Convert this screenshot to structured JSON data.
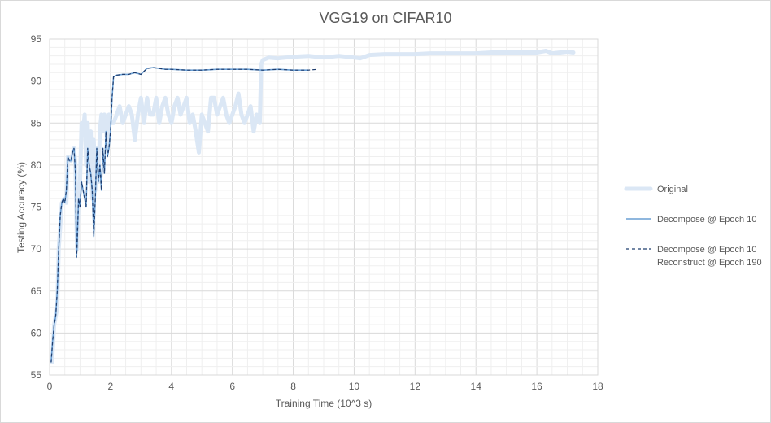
{
  "chart_data": {
    "type": "line",
    "title": "VGG19 on CIFAR10",
    "xlabel": "Training Time (10^3 s)",
    "ylabel": "Testing Accuracy (%)",
    "xlim": [
      0,
      18
    ],
    "ylim": [
      55,
      95
    ],
    "xticks": [
      "0",
      "2",
      "4",
      "6",
      "8",
      "10",
      "12",
      "14",
      "16",
      "18"
    ],
    "yticks": [
      "55",
      "60",
      "65",
      "70",
      "75",
      "80",
      "85",
      "90",
      "95"
    ],
    "grid": true,
    "legend_position": "right",
    "series": [
      {
        "name": "Original",
        "color": "#dbe7f5",
        "style": "thick",
        "x": [
          0.08,
          0.15,
          0.25,
          0.3,
          0.4,
          0.5,
          0.55,
          0.6,
          0.7,
          0.8,
          0.85,
          0.9,
          0.95,
          1.0,
          1.05,
          1.1,
          1.15,
          1.2,
          1.25,
          1.3,
          1.35,
          1.4,
          1.45,
          1.5,
          1.55,
          1.6,
          1.65,
          1.7,
          1.75,
          1.8,
          1.85,
          1.9,
          1.95,
          2.0,
          2.1,
          2.2,
          2.3,
          2.4,
          2.5,
          2.6,
          2.7,
          2.8,
          2.9,
          3.0,
          3.1,
          3.2,
          3.3,
          3.4,
          3.5,
          3.6,
          3.7,
          3.8,
          3.9,
          4.0,
          4.1,
          4.2,
          4.3,
          4.4,
          4.5,
          4.6,
          4.7,
          4.8,
          4.9,
          5.0,
          5.1,
          5.2,
          5.3,
          5.4,
          5.5,
          5.6,
          5.7,
          5.8,
          5.9,
          6.0,
          6.1,
          6.2,
          6.3,
          6.4,
          6.5,
          6.6,
          6.7,
          6.8,
          6.9,
          6.95,
          7.0,
          7.2,
          7.5,
          8.0,
          8.5,
          9.0,
          9.5,
          10.0,
          10.2,
          10.5,
          11.0,
          11.5,
          12.0,
          12.5,
          13.0,
          13.5,
          14.0,
          14.5,
          15.0,
          15.5,
          16.0,
          16.3,
          16.5,
          17.0,
          17.2
        ],
        "y": [
          56.5,
          61,
          63,
          70,
          75.5,
          76,
          75.5,
          81,
          80.5,
          82,
          80,
          70,
          76,
          78,
          85,
          84,
          86,
          80,
          85,
          78,
          84,
          76,
          83,
          77,
          82,
          78,
          84,
          86,
          84,
          86,
          85,
          82,
          86,
          85,
          85,
          86,
          87,
          85,
          86,
          87,
          86,
          83,
          86,
          88,
          85,
          88,
          86,
          86,
          88,
          85,
          87,
          88,
          86,
          85,
          87,
          88,
          86,
          87,
          88,
          85,
          86,
          84,
          81.5,
          86,
          85,
          84,
          88,
          88,
          86,
          87,
          88,
          86,
          85,
          86,
          87,
          88.5,
          86,
          85,
          86,
          87,
          84,
          86,
          85,
          92,
          92.5,
          92.8,
          92.7,
          92.9,
          93,
          92.8,
          93,
          92.8,
          92.7,
          93.1,
          93.2,
          93.2,
          93.2,
          93.3,
          93.3,
          93.3,
          93.3,
          93.4,
          93.4,
          93.4,
          93.4,
          93.6,
          93.3,
          93.5,
          93.4
        ]
      },
      {
        "name": "Decompose @ Epoch 10",
        "color": "#6a9fd4",
        "style": "solid",
        "x": [
          0.05,
          0.1,
          0.15,
          0.2,
          0.25,
          0.3,
          0.35,
          0.4,
          0.45,
          0.5,
          0.55,
          0.6,
          0.65,
          0.7,
          0.75,
          0.8,
          0.85,
          0.88,
          0.9,
          0.95,
          1.0,
          1.05,
          1.1,
          1.15,
          1.2,
          1.25,
          1.3,
          1.35,
          1.4,
          1.45,
          1.5,
          1.55,
          1.6,
          1.65,
          1.7,
          1.75,
          1.8,
          1.85,
          1.9,
          1.95,
          2.0,
          2.05,
          2.1,
          2.2,
          2.4,
          2.6,
          2.8,
          3.0,
          3.2,
          3.4,
          3.6,
          3.8,
          4.0,
          4.5,
          5.0,
          5.5,
          6.0,
          6.5,
          7.0,
          7.5,
          8.0,
          8.5
        ],
        "y": [
          56.5,
          59,
          61,
          62,
          65,
          70,
          74,
          75.5,
          76,
          75.5,
          77,
          81,
          80.5,
          80.5,
          81.5,
          82,
          79,
          69,
          70,
          76,
          75,
          78,
          77,
          76,
          75,
          82,
          80,
          79,
          77,
          71.5,
          76,
          82,
          78,
          80,
          77,
          82,
          79,
          84,
          81,
          82,
          84,
          88,
          90.5,
          90.7,
          90.8,
          90.8,
          91.0,
          90.8,
          91.5,
          91.6,
          91.5,
          91.4,
          91.4,
          91.3,
          91.3,
          91.4,
          91.4,
          91.4,
          91.3,
          91.4,
          91.3,
          91.3
        ]
      },
      {
        "name": "Decompose @ Epoch 10\nReconstruct @ Epoch 190",
        "color": "#1f3d6e",
        "style": "dashed",
        "x": [
          0.05,
          0.1,
          0.15,
          0.2,
          0.25,
          0.3,
          0.35,
          0.4,
          0.45,
          0.5,
          0.55,
          0.6,
          0.65,
          0.7,
          0.75,
          0.8,
          0.85,
          0.88,
          0.9,
          0.95,
          1.0,
          1.05,
          1.1,
          1.15,
          1.2,
          1.25,
          1.3,
          1.35,
          1.4,
          1.45,
          1.5,
          1.55,
          1.6,
          1.65,
          1.7,
          1.75,
          1.8,
          1.85,
          1.9,
          1.95,
          2.0,
          2.05,
          2.1,
          2.2,
          2.4,
          2.6,
          2.8,
          3.0,
          3.2,
          3.4,
          3.6,
          3.8,
          4.0,
          4.5,
          5.0,
          5.5,
          6.0,
          6.5,
          7.0,
          7.5,
          8.0,
          8.5,
          8.8
        ],
        "y": [
          56.5,
          59,
          61,
          62,
          65,
          70,
          74,
          75.5,
          76,
          75.5,
          77,
          81,
          80.5,
          80.5,
          81.5,
          82,
          79,
          69,
          70,
          76,
          75,
          78,
          77,
          76,
          75,
          82,
          80,
          79,
          77,
          71.5,
          76,
          82,
          78,
          80,
          77,
          82,
          79,
          84,
          81,
          82,
          84,
          88,
          90.5,
          90.7,
          90.8,
          90.8,
          91.0,
          90.8,
          91.5,
          91.6,
          91.5,
          91.4,
          91.4,
          91.3,
          91.3,
          91.4,
          91.4,
          91.4,
          91.3,
          91.4,
          91.3,
          91.3,
          91.4
        ]
      }
    ]
  }
}
